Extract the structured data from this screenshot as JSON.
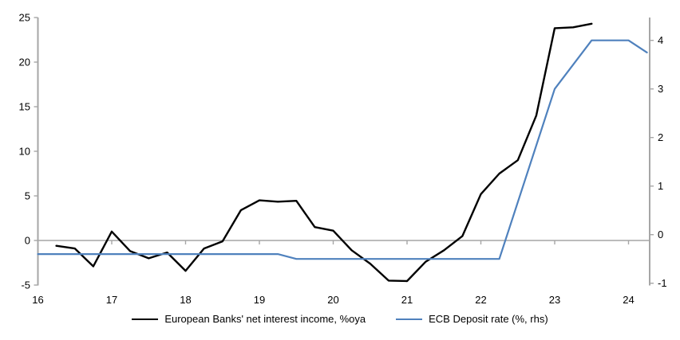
{
  "chart_data": {
    "type": "line",
    "title": "",
    "xlabel": "",
    "ylabel_left": "",
    "ylabel_right": "",
    "grid": "zero-line-only",
    "legend_position": "bottom-center",
    "colors": {
      "axis": "#a6a6a6",
      "zero_line": "#a6a6a6",
      "text": "#000000"
    },
    "x_axis": {
      "ticks": [
        16,
        17,
        18,
        19,
        20,
        21,
        22,
        23,
        24
      ],
      "range": [
        16,
        24.29
      ]
    },
    "left_axis": {
      "ticks": [
        25,
        20,
        15,
        10,
        5,
        0,
        -5
      ],
      "range": [
        -5,
        25
      ]
    },
    "right_axis": {
      "ticks": [
        4,
        3,
        2,
        1,
        0,
        -1
      ],
      "range": [
        -1.1,
        4.47
      ]
    },
    "series": [
      {
        "name": "European Banks' net interest income, %oya",
        "axis": "left",
        "color": "#000000",
        "line_width": 2.4,
        "x": [
          16.25,
          16.5,
          16.75,
          17.0,
          17.25,
          17.5,
          17.75,
          18.0,
          18.25,
          18.5,
          18.75,
          19.0,
          19.25,
          19.5,
          19.75,
          20.0,
          20.25,
          20.5,
          20.75,
          21.0,
          21.25,
          21.5,
          21.75,
          22.0,
          22.25,
          22.5,
          22.75,
          23.0,
          23.25,
          23.5
        ],
        "values": [
          -0.6,
          -0.9,
          -2.9,
          1.0,
          -1.2,
          -2.0,
          -1.35,
          -3.4,
          -0.9,
          -0.1,
          3.4,
          4.5,
          4.35,
          4.45,
          1.5,
          1.1,
          -1.1,
          -2.6,
          -4.5,
          -4.55,
          -2.4,
          -1.1,
          0.5,
          5.2,
          7.5,
          9.0,
          14.0,
          23.8,
          23.9,
          24.3
        ]
      },
      {
        "name": "ECB Deposit rate (%, rhs)",
        "axis": "right",
        "color": "#4F81BD",
        "line_width": 2.2,
        "x": [
          16.0,
          19.25,
          19.5,
          22.25,
          23.0,
          23.5,
          24.0,
          24.25
        ],
        "values": [
          -0.4,
          -0.4,
          -0.5,
          -0.5,
          3.0,
          4.0,
          4.0,
          3.75
        ]
      }
    ]
  },
  "legend": {
    "series1_label": "European Banks' net interest income, %oya",
    "series2_label": "ECB Deposit rate (%, rhs)"
  }
}
